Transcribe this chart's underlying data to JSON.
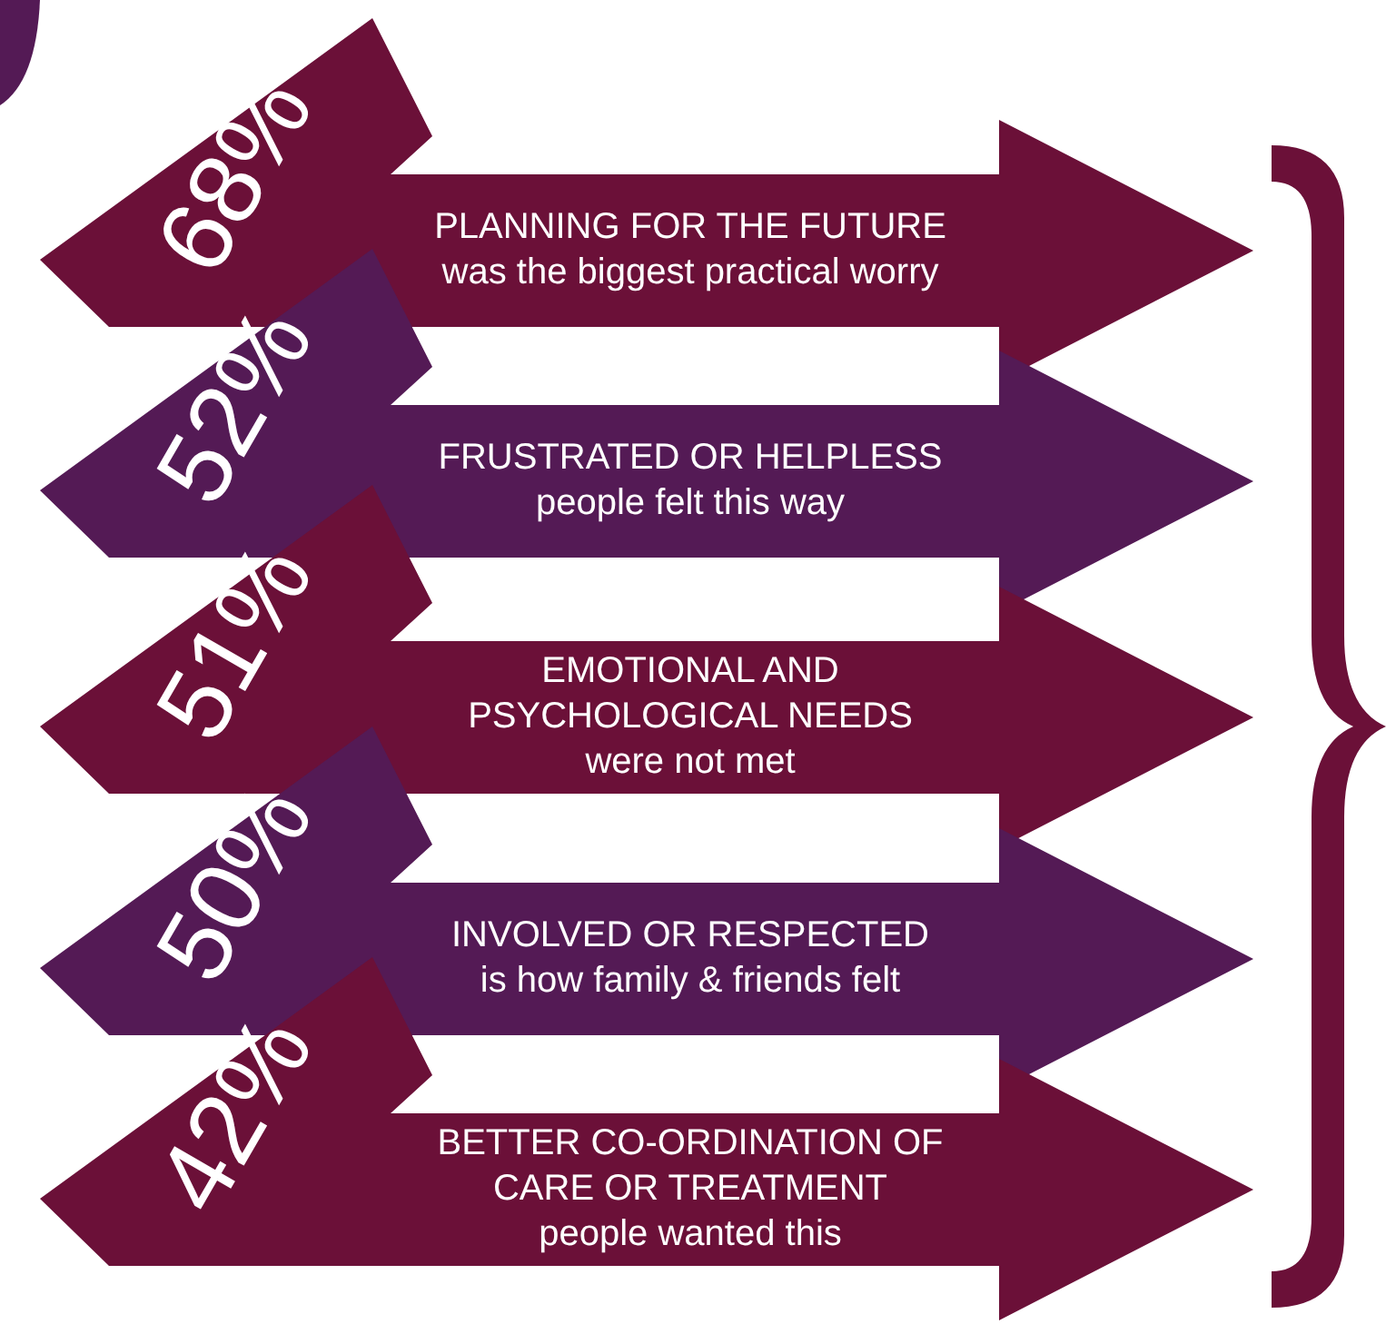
{
  "chart_data": {
    "type": "other",
    "categories": [
      "PLANNING FOR THE FUTURE\nwas the biggest practical worry",
      "FRUSTRATED OR HELPLESS\npeople felt this way",
      "EMOTIONAL AND\nPSYCHOLOGICAL NEEDS\nwere not met",
      "INVOLVED OR RESPECTED\nis how family & friends felt",
      "BETTER CO-ORDINATION OF\nCARE OR TREATMENT\npeople wanted this"
    ],
    "values": [
      68,
      52,
      51,
      50,
      42
    ],
    "value_labels": [
      "68%",
      "52%",
      "51%",
      "50%",
      "42%"
    ],
    "colors": [
      "#6b1038",
      "#541a55",
      "#6b1038",
      "#541a55",
      "#6b1038"
    ]
  }
}
